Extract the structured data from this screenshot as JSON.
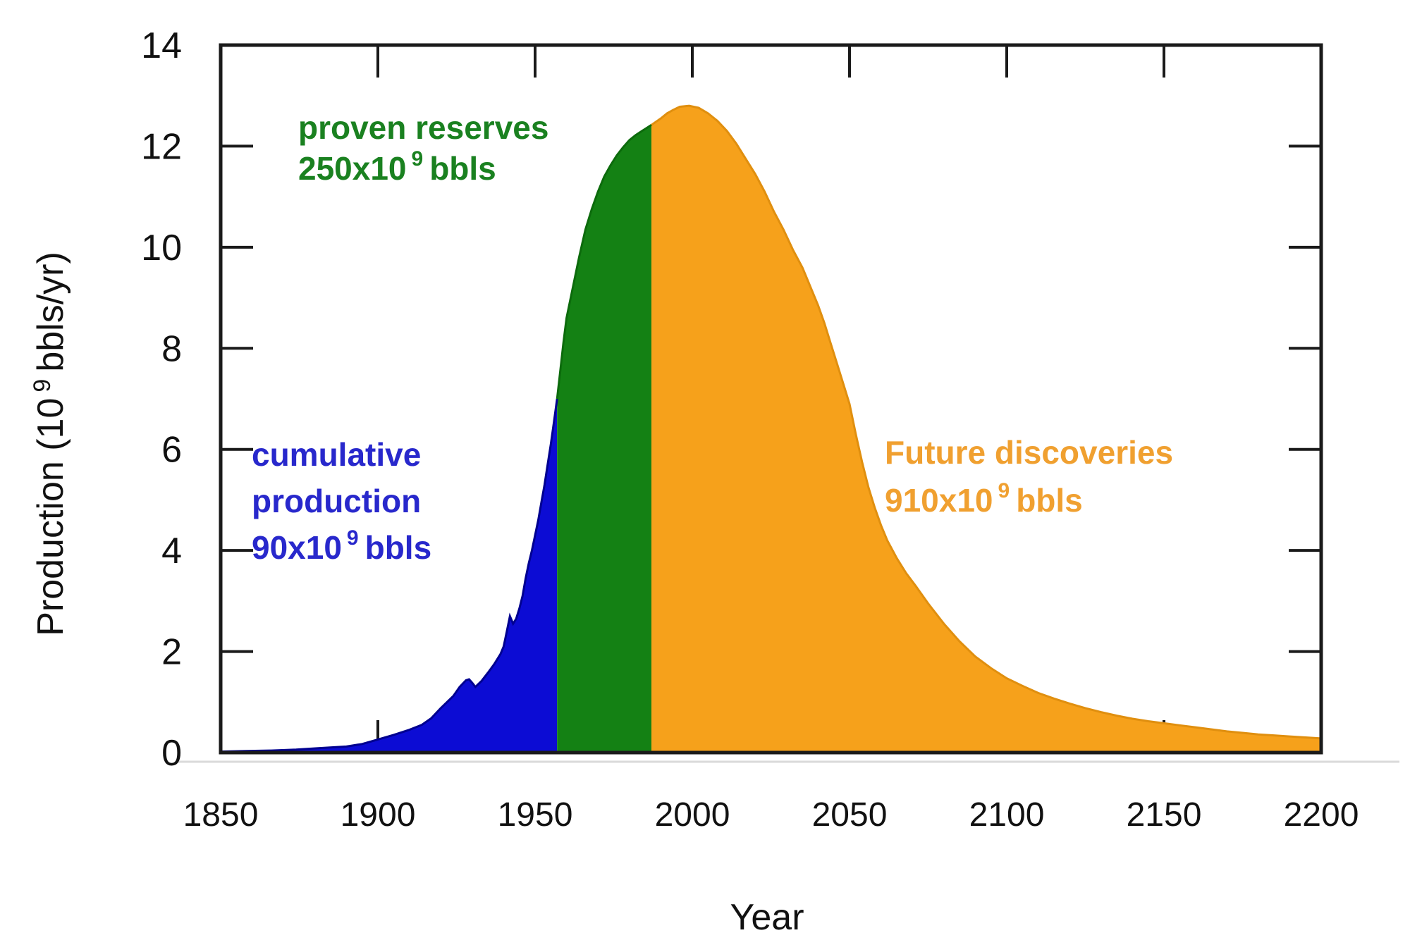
{
  "axis": {
    "x_label": "Year",
    "y_label_prefix": "Production (10",
    "y_label_sup": "9",
    "y_label_suffix": "bbls/yr)"
  },
  "annotations": {
    "proven": {
      "line1": "proven reserves",
      "amount": "250x10",
      "sup": "9",
      "unit": "bbls",
      "color": "#1a8120"
    },
    "cumulative": {
      "line1": "cumulative",
      "line2": "production",
      "amount": "90x10",
      "sup": "9",
      "unit": "bbls",
      "color": "#2828cc"
    },
    "future": {
      "line1": "Future discoveries",
      "amount": "910x10",
      "sup": "9",
      "unit": "bbls",
      "color": "#f0a030"
    }
  },
  "chart_data": {
    "type": "area",
    "title": "",
    "xlabel": "Year",
    "ylabel": "Production (10^9 bbls/yr)",
    "xlim": [
      1850,
      2200
    ],
    "ylim": [
      0,
      14
    ],
    "grid": false,
    "x_tick_values": [
      1850,
      1900,
      1950,
      2000,
      2050,
      2100,
      2150,
      2200
    ],
    "y_tick_values": [
      0,
      2,
      4,
      6,
      8,
      10,
      12,
      14
    ],
    "legend_position": "none",
    "series": [
      {
        "name": "cumulative production",
        "label": "cumulative production 90x10^9 bbls",
        "fill": "#0c0cd4",
        "edge": "#000090",
        "points": [
          [
            1850,
            0.02
          ],
          [
            1858,
            0.03
          ],
          [
            1866,
            0.04
          ],
          [
            1874,
            0.06
          ],
          [
            1882,
            0.09
          ],
          [
            1890,
            0.12
          ],
          [
            1895,
            0.17
          ],
          [
            1900,
            0.26
          ],
          [
            1905,
            0.35
          ],
          [
            1910,
            0.45
          ],
          [
            1914,
            0.55
          ],
          [
            1917,
            0.68
          ],
          [
            1920,
            0.88
          ],
          [
            1922,
            1.0
          ],
          [
            1924,
            1.12
          ],
          [
            1926,
            1.3
          ],
          [
            1928,
            1.43
          ],
          [
            1929,
            1.45
          ],
          [
            1930,
            1.38
          ],
          [
            1931,
            1.3
          ],
          [
            1933,
            1.42
          ],
          [
            1935,
            1.58
          ],
          [
            1937,
            1.75
          ],
          [
            1939,
            1.95
          ],
          [
            1940,
            2.1
          ],
          [
            1941,
            2.4
          ],
          [
            1942,
            2.7
          ],
          [
            1943,
            2.55
          ],
          [
            1944,
            2.65
          ],
          [
            1945,
            2.85
          ],
          [
            1946,
            3.1
          ],
          [
            1947,
            3.45
          ],
          [
            1948,
            3.75
          ],
          [
            1949,
            4.0
          ],
          [
            1950,
            4.3
          ],
          [
            1951,
            4.6
          ],
          [
            1952,
            4.95
          ],
          [
            1953,
            5.3
          ],
          [
            1954,
            5.7
          ],
          [
            1955,
            6.1
          ],
          [
            1956,
            6.55
          ],
          [
            1957,
            7.0
          ]
        ]
      },
      {
        "name": "proven reserves",
        "label": "proven reserves 250x10^9 bbls",
        "fill": "#148114",
        "edge": "#0c6b0c",
        "points": [
          [
            1957,
            7.0
          ],
          [
            1958,
            7.55
          ],
          [
            1959,
            8.1
          ],
          [
            1960,
            8.6
          ],
          [
            1962,
            9.2
          ],
          [
            1964,
            9.8
          ],
          [
            1966,
            10.35
          ],
          [
            1968,
            10.75
          ],
          [
            1970,
            11.1
          ],
          [
            1972,
            11.4
          ],
          [
            1974,
            11.62
          ],
          [
            1976,
            11.82
          ],
          [
            1978,
            11.98
          ],
          [
            1980,
            12.12
          ],
          [
            1982,
            12.22
          ],
          [
            1984,
            12.3
          ],
          [
            1986,
            12.38
          ],
          [
            1987,
            12.42
          ]
        ]
      },
      {
        "name": "future discoveries",
        "label": "Future discoveries 910x10^9 bbls",
        "fill": "#f6a11b",
        "edge": "#e08f0f",
        "points": [
          [
            1987,
            12.42
          ],
          [
            1990,
            12.55
          ],
          [
            1992,
            12.65
          ],
          [
            1994,
            12.72
          ],
          [
            1996,
            12.78
          ],
          [
            1999,
            12.8
          ],
          [
            2002,
            12.76
          ],
          [
            2005,
            12.65
          ],
          [
            2008,
            12.5
          ],
          [
            2011,
            12.3
          ],
          [
            2014,
            12.05
          ],
          [
            2017,
            11.75
          ],
          [
            2020,
            11.45
          ],
          [
            2023,
            11.1
          ],
          [
            2026,
            10.7
          ],
          [
            2029,
            10.35
          ],
          [
            2032,
            9.95
          ],
          [
            2035,
            9.6
          ],
          [
            2038,
            9.15
          ],
          [
            2040,
            8.85
          ],
          [
            2042,
            8.5
          ],
          [
            2044,
            8.1
          ],
          [
            2046,
            7.7
          ],
          [
            2048,
            7.3
          ],
          [
            2050,
            6.9
          ],
          [
            2052,
            6.3
          ],
          [
            2054,
            5.75
          ],
          [
            2056,
            5.25
          ],
          [
            2058,
            4.85
          ],
          [
            2060,
            4.5
          ],
          [
            2062,
            4.2
          ],
          [
            2065,
            3.85
          ],
          [
            2068,
            3.55
          ],
          [
            2071,
            3.3
          ],
          [
            2075,
            2.95
          ],
          [
            2080,
            2.55
          ],
          [
            2085,
            2.2
          ],
          [
            2090,
            1.9
          ],
          [
            2095,
            1.67
          ],
          [
            2100,
            1.47
          ],
          [
            2105,
            1.32
          ],
          [
            2110,
            1.18
          ],
          [
            2115,
            1.07
          ],
          [
            2120,
            0.97
          ],
          [
            2125,
            0.88
          ],
          [
            2130,
            0.8
          ],
          [
            2135,
            0.73
          ],
          [
            2140,
            0.67
          ],
          [
            2145,
            0.62
          ],
          [
            2150,
            0.58
          ],
          [
            2155,
            0.54
          ],
          [
            2160,
            0.5
          ],
          [
            2165,
            0.46
          ],
          [
            2170,
            0.42
          ],
          [
            2175,
            0.39
          ],
          [
            2180,
            0.36
          ],
          [
            2185,
            0.34
          ],
          [
            2190,
            0.32
          ],
          [
            2195,
            0.3
          ],
          [
            2200,
            0.28
          ]
        ]
      }
    ]
  }
}
